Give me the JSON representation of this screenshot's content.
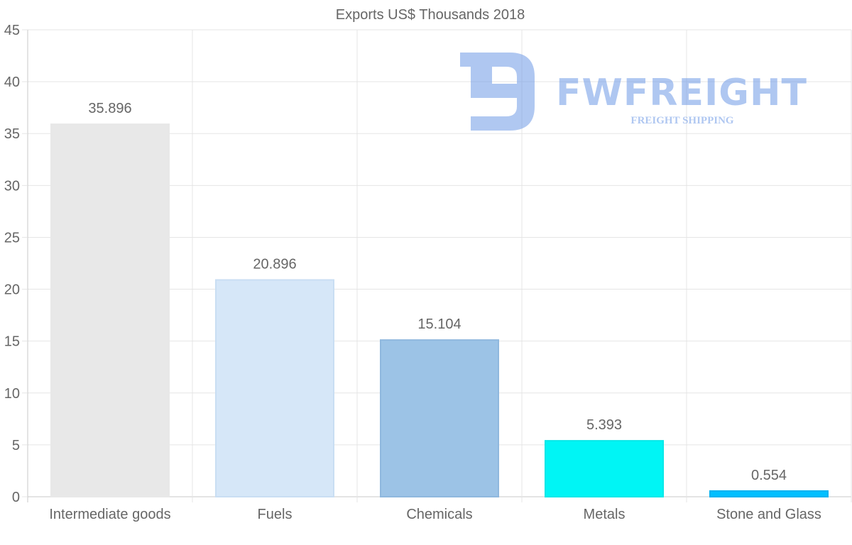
{
  "chart_data": {
    "type": "bar",
    "title": "Exports US$ Thousands 2018",
    "xlabel": "",
    "ylabel": "",
    "categories": [
      "Intermediate goods",
      "Fuels",
      "Chemicals",
      "Metals",
      "Stone and Glass"
    ],
    "values": [
      35.896,
      20.896,
      15.104,
      5.393,
      0.554
    ],
    "data_labels": [
      "35.896",
      "20.896",
      "15.104",
      "5.393",
      "0.554"
    ],
    "bar_colors": [
      "#e8e8e8",
      "#d6e7f8",
      "#9cc3e6",
      "#00f5f5",
      "#00bfff"
    ],
    "bar_border_colors": [
      "#e8e8e8",
      "#c9def3",
      "#8fb8de",
      "#00e8e8",
      "#00b2f0"
    ],
    "ylim": [
      0,
      45
    ],
    "yticks": [
      0,
      5,
      10,
      15,
      20,
      25,
      30,
      35,
      40,
      45
    ],
    "ytick_labels": [
      "0",
      "5",
      "10",
      "15",
      "20",
      "25",
      "30",
      "35",
      "40",
      "45"
    ],
    "grid": true,
    "legend": "none"
  },
  "watermark": {
    "brand": "FWFREIGHT",
    "tagline": "FREIGHT SHIPPING",
    "color": "#6f9ae6"
  },
  "colors": {
    "text": "#666666",
    "title": "#666666",
    "grid": "#e5e5e5",
    "axis": "#c8c8c8"
  }
}
